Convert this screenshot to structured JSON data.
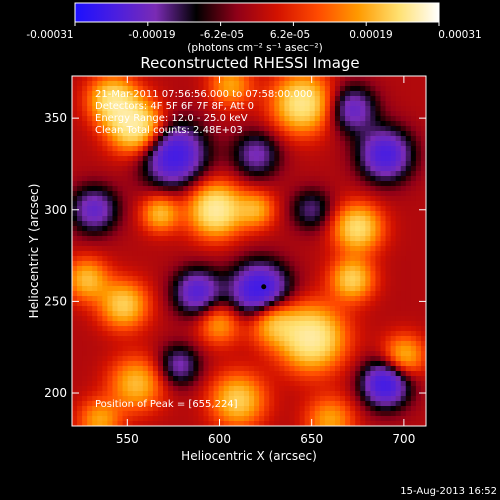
{
  "colorbar": {
    "tick_labels": [
      "-0.00031",
      "-0.00019",
      "-6.2e-05",
      "6.2e-05",
      "0.00019",
      "0.00031"
    ],
    "unit_label": "(photons cm⁻² s⁻¹ asec⁻²)",
    "colors": [
      "#1c10ff",
      "#4a1ee0",
      "#7a2bb4",
      "#000000",
      "#8f0018",
      "#d31200",
      "#ff4a00",
      "#ff9a00",
      "#ffe070",
      "#ffffff"
    ]
  },
  "chart_data": {
    "type": "heatmap",
    "title": "Reconstructed RHESSI Image",
    "xlabel": "Heliocentric X (arcsec)",
    "ylabel": "Heliocentric Y (arcsec)",
    "xlim": [
      520,
      712
    ],
    "ylim": [
      182,
      373
    ],
    "x_ticks": [
      550,
      600,
      650,
      700
    ],
    "y_ticks": [
      200,
      250,
      300,
      350
    ],
    "annotations": [
      "21-Mar-2011 07:56:56.000 to 07:58:00.000",
      "Detectors: 4F 5F 6F 7F 8F, Att 0",
      "Energy Range: 12.0 - 25.0 keV",
      "Clean    Total counts: 2.48E+03"
    ],
    "peak_label": "Position of Peak = [655,224]",
    "marker": {
      "x": 624,
      "y": 258
    },
    "sources": [
      {
        "x": 555,
        "y": 345,
        "amp": 1.0,
        "sigma": 10
      },
      {
        "x": 542,
        "y": 360,
        "amp": 0.8,
        "sigma": 9
      },
      {
        "x": 598,
        "y": 300,
        "amp": 1.0,
        "sigma": 10
      },
      {
        "x": 568,
        "y": 298,
        "amp": 0.6,
        "sigma": 7
      },
      {
        "x": 620,
        "y": 300,
        "amp": 0.5,
        "sigma": 7
      },
      {
        "x": 645,
        "y": 358,
        "amp": 0.9,
        "sigma": 11
      },
      {
        "x": 606,
        "y": 368,
        "amp": 0.5,
        "sigma": 8
      },
      {
        "x": 675,
        "y": 290,
        "amp": 0.8,
        "sigma": 9
      },
      {
        "x": 672,
        "y": 262,
        "amp": 0.7,
        "sigma": 8
      },
      {
        "x": 650,
        "y": 230,
        "amp": 1.0,
        "sigma": 12
      },
      {
        "x": 628,
        "y": 240,
        "amp": 0.7,
        "sigma": 9
      },
      {
        "x": 600,
        "y": 238,
        "amp": 0.5,
        "sigma": 8
      },
      {
        "x": 548,
        "y": 248,
        "amp": 0.7,
        "sigma": 9
      },
      {
        "x": 528,
        "y": 262,
        "amp": 0.6,
        "sigma": 8
      },
      {
        "x": 555,
        "y": 205,
        "amp": 0.6,
        "sigma": 10
      },
      {
        "x": 610,
        "y": 196,
        "amp": 0.7,
        "sigma": 10
      },
      {
        "x": 700,
        "y": 220,
        "amp": 0.6,
        "sigma": 8
      },
      {
        "x": 535,
        "y": 185,
        "amp": 0.5,
        "sigma": 8
      },
      {
        "x": 660,
        "y": 185,
        "amp": 0.5,
        "sigma": 9
      },
      {
        "x": 575,
        "y": 330,
        "amp": -0.9,
        "sigma": 12
      },
      {
        "x": 622,
        "y": 255,
        "amp": -1.0,
        "sigma": 11
      },
      {
        "x": 588,
        "y": 255,
        "amp": -0.7,
        "sigma": 9
      },
      {
        "x": 690,
        "y": 205,
        "amp": -0.9,
        "sigma": 9
      },
      {
        "x": 690,
        "y": 330,
        "amp": -0.8,
        "sigma": 10
      },
      {
        "x": 672,
        "y": 355,
        "amp": -0.6,
        "sigma": 9
      },
      {
        "x": 620,
        "y": 330,
        "amp": -0.5,
        "sigma": 9
      },
      {
        "x": 578,
        "y": 215,
        "amp": -0.5,
        "sigma": 8
      },
      {
        "x": 532,
        "y": 300,
        "amp": -0.6,
        "sigma": 9
      },
      {
        "x": 650,
        "y": 300,
        "amp": -0.4,
        "sigma": 8
      }
    ]
  },
  "footer": {
    "timestamp": "15-Aug-2013 16:52"
  }
}
